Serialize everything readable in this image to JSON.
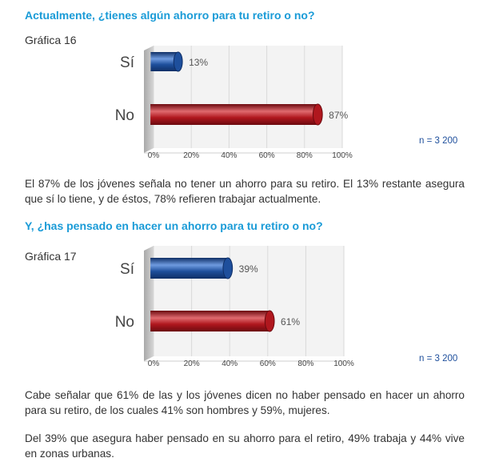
{
  "sections": [
    {
      "question": "Actualmente, ¿tienes algún ahorro para tu retiro o no?",
      "grafica": "Gráfica 16",
      "n": "n = 3 200",
      "paragraphs": [
        "El 87% de los jóvenes señala no tener un ahorro para su retiro. El 13% restante asegura que sí lo tiene, y de éstos, 78% refieren trabajar actualmente."
      ]
    },
    {
      "question": "Y, ¿has pensado en hacer un ahorro para tu retiro o no?",
      "grafica": "Gráfica 17",
      "n": "n = 3 200",
      "paragraphs": [
        "Cabe señalar que 61% de las y los jóvenes dicen no haber pensado en hacer un ahorro para su retiro, de los cuales 41% son hombres y 59%, mujeres.",
        "Del 39% que asegura haber pensado en su ahorro para el retiro, 49% trabaja y 44% vive en zonas urbanas."
      ]
    }
  ],
  "chart_data": [
    {
      "type": "bar",
      "orientation": "horizontal",
      "categories": [
        "Sí",
        "No"
      ],
      "values": [
        13,
        87
      ],
      "value_labels": [
        "13%",
        "87%"
      ],
      "xlim": [
        0,
        100
      ],
      "xticks": [
        "0%",
        "20%",
        "40%",
        "60%",
        "80%",
        "100%"
      ],
      "colors": [
        "#1e4f9c",
        "#b0171e"
      ]
    },
    {
      "type": "bar",
      "orientation": "horizontal",
      "categories": [
        "Sí",
        "No"
      ],
      "values": [
        39,
        61
      ],
      "value_labels": [
        "39%",
        "61%"
      ],
      "xlim": [
        0,
        100
      ],
      "xticks": [
        "0%",
        "20%",
        "40%",
        "60%",
        "80%",
        "100%"
      ],
      "colors": [
        "#1e4f9c",
        "#b0171e"
      ]
    }
  ]
}
